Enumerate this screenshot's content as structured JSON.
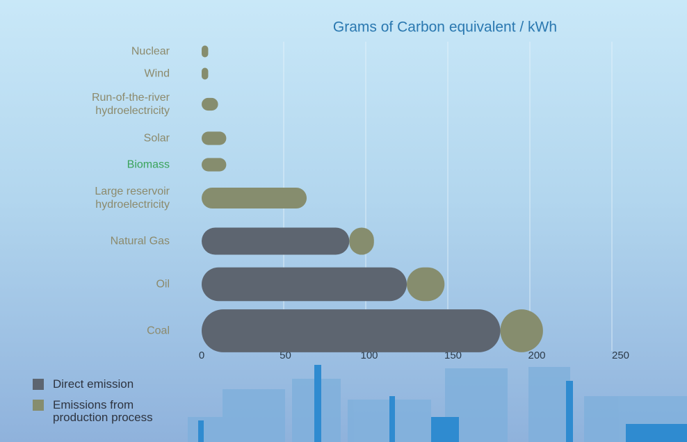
{
  "chart_data": {
    "type": "stacked-bar-horizontal",
    "title": "Grams of Carbon equivalent / kWh",
    "categories": [
      "Nuclear",
      "Wind",
      "Run-of-the-river hydroelectricity",
      "Solar",
      "Biomass",
      "Large reservoir hydroelectricity",
      "Natural Gas",
      "Oil",
      "Coal"
    ],
    "category_label_colors": [
      "#8c8a6c",
      "#8c8a6c",
      "#8c8a6c",
      "#8c8a6c",
      "#3aa35a",
      "#8c8a6c",
      "#8c8a6c",
      "#8c8a6c",
      "#8c8a6c"
    ],
    "series": [
      {
        "name": "Direct emission",
        "color": "#5d6570",
        "values": [
          0,
          0,
          0,
          0,
          0,
          0,
          90,
          125,
          182
        ]
      },
      {
        "name": "Emissions from production process",
        "color": "#868d6e",
        "values": [
          4,
          4,
          10,
          15,
          15,
          64,
          15,
          23,
          26
        ]
      }
    ],
    "xlim": [
      0,
      250
    ],
    "xticks": [
      0,
      50,
      100,
      150,
      200,
      250
    ],
    "grid": true,
    "legend": "bottom-left"
  }
}
